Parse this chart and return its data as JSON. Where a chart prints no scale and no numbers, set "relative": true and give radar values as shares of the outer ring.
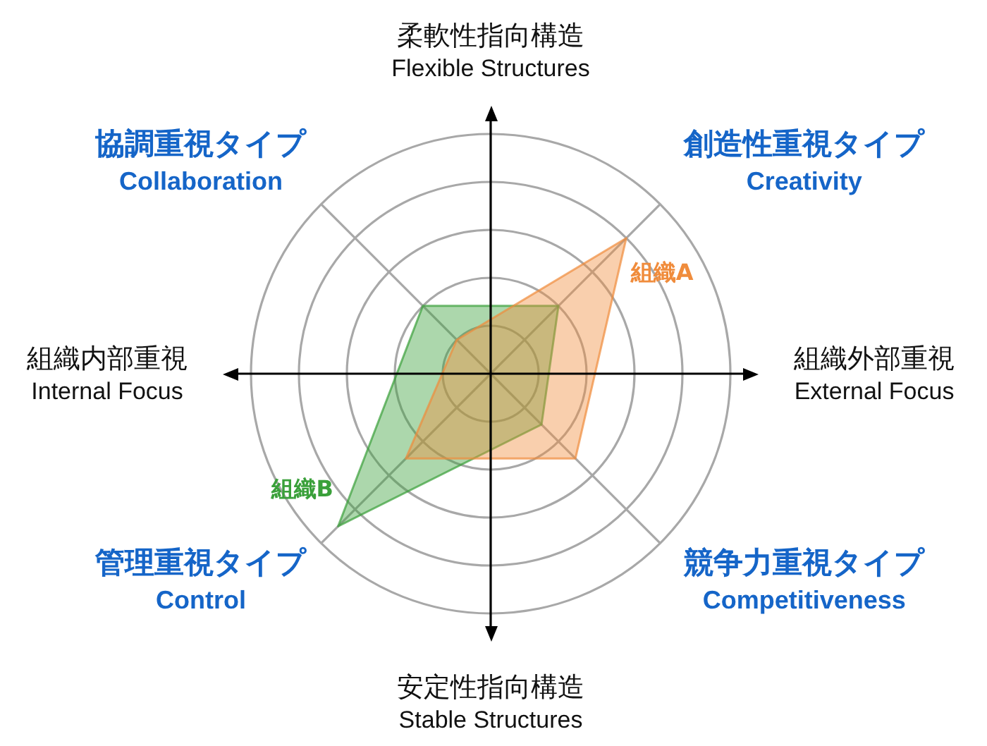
{
  "chart_data": {
    "type": "radar",
    "relative": true,
    "categories": [
      "創造性重視タイプ\nCreativity",
      "競争力重視タイプ\nCompetitiveness",
      "管理重視タイプ\nControl",
      "協調重視タイプ\nCollaboration"
    ],
    "series": [
      {
        "name": "組織A",
        "color": "#f08c3c",
        "values": [
          0.8,
          0.5,
          0.5,
          0.2
        ]
      },
      {
        "name": "組織B",
        "color": "#3aa03a",
        "values": [
          0.4,
          0.3,
          0.9,
          0.4
        ]
      }
    ],
    "annotations": [
      "柔軟性指向構造\nFlexible Structures",
      "組織外部重視\nExternal Focus",
      "安定性指向構造\nStable Structures",
      "組織内部重視\nInternal Focus"
    ],
    "grid": true,
    "legend": false,
    "marker": "none"
  }
}
